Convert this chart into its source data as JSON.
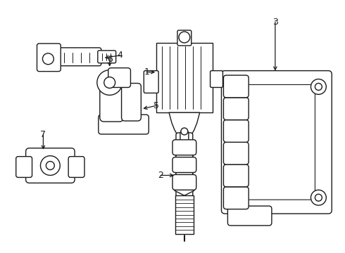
{
  "bg_color": "#ffffff",
  "line_color": "#1a1a1a",
  "lw": 1.0,
  "fig_w": 4.9,
  "fig_h": 3.6,
  "dpi": 100
}
